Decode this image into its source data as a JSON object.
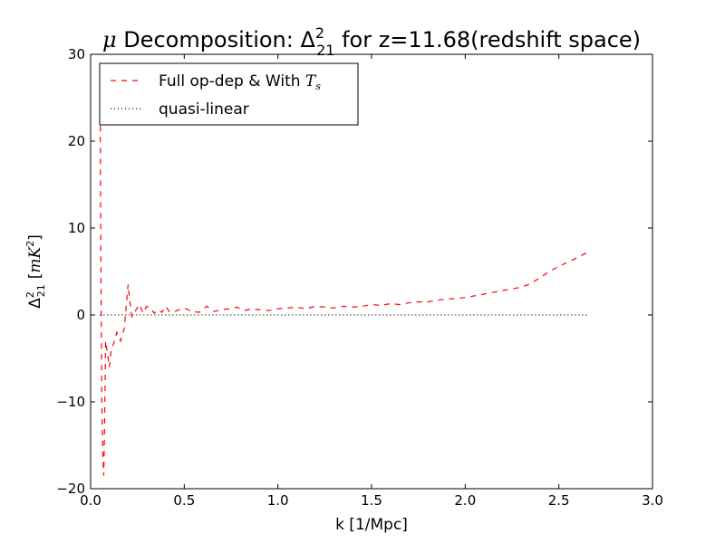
{
  "chart_data": {
    "type": "line",
    "title": {
      "prefix": "μ",
      "main": " Decomposition: ",
      "delta": "Δ",
      "sup": "2",
      "sub": "21",
      "suffix": " for z=11.68(redshift space)"
    },
    "xlabel": "k [1/Mpc]",
    "ylabel": {
      "delta": "Δ",
      "sup": "2",
      "sub": "21",
      "unit_open": "[",
      "unit": "mK",
      "unit_sup": "2",
      "unit_close": "]"
    },
    "xlim": [
      0.0,
      3.0
    ],
    "ylim": [
      -20,
      30
    ],
    "xticks": [
      "0.0",
      "0.5",
      "1.0",
      "1.5",
      "2.0",
      "2.5",
      "3.0"
    ],
    "yticks": [
      "−20",
      "−10",
      "0",
      "10",
      "20",
      "30"
    ],
    "xtick_values": [
      0.0,
      0.5,
      1.0,
      1.5,
      2.0,
      2.5,
      3.0
    ],
    "ytick_values": [
      -20,
      -10,
      0,
      10,
      20,
      30
    ],
    "legend_position": "top-left",
    "grid": false,
    "series": [
      {
        "name": "Full op-dep & With T_s",
        "legend_main": "Full op-dep & With ",
        "legend_math": "T",
        "legend_math_sub": "s",
        "color": "#ff0000",
        "style": "dashed",
        "x": [
          0.05,
          0.055,
          0.06,
          0.065,
          0.07,
          0.075,
          0.08,
          0.09,
          0.1,
          0.11,
          0.12,
          0.14,
          0.16,
          0.18,
          0.2,
          0.21,
          0.22,
          0.24,
          0.26,
          0.28,
          0.3,
          0.32,
          0.34,
          0.36,
          0.38,
          0.4,
          0.42,
          0.44,
          0.46,
          0.5,
          0.54,
          0.58,
          0.62,
          0.66,
          0.7,
          0.74,
          0.78,
          0.82,
          0.86,
          0.9,
          0.95,
          1.0,
          1.05,
          1.1,
          1.15,
          1.2,
          1.25,
          1.3,
          1.35,
          1.4,
          1.45,
          1.5,
          1.55,
          1.6,
          1.65,
          1.7,
          1.75,
          1.8,
          1.85,
          1.9,
          1.95,
          2.0,
          2.05,
          2.1,
          2.15,
          2.2,
          2.25,
          2.3,
          2.35,
          2.4,
          2.45,
          2.5,
          2.55,
          2.6,
          2.66
        ],
        "y": [
          28,
          5,
          -10,
          -16,
          -18.5,
          -12,
          -3,
          -4.5,
          -6,
          -4,
          -3.5,
          -2,
          -3,
          -1.5,
          3.5,
          1.5,
          -0.2,
          0.5,
          1.2,
          0.2,
          1.0,
          0.8,
          0.2,
          0.6,
          0.3,
          1.0,
          0.4,
          0.3,
          0.5,
          0.8,
          0.4,
          0.3,
          1.0,
          0.4,
          0.6,
          0.7,
          0.9,
          0.5,
          0.7,
          0.6,
          0.5,
          0.7,
          0.8,
          0.9,
          0.7,
          1.0,
          0.9,
          0.8,
          1.0,
          0.9,
          1.0,
          1.2,
          1.1,
          1.3,
          1.2,
          1.4,
          1.5,
          1.5,
          1.7,
          1.8,
          1.9,
          2.0,
          2.2,
          2.4,
          2.6,
          2.8,
          3.0,
          3.2,
          3.6,
          4.3,
          5.0,
          5.6,
          6.1,
          6.6,
          7.3
        ]
      },
      {
        "name": "quasi-linear",
        "color": "#000000",
        "style": "dotted",
        "x": [
          0.05,
          2.66
        ],
        "y": [
          0.0,
          0.0
        ]
      }
    ]
  }
}
